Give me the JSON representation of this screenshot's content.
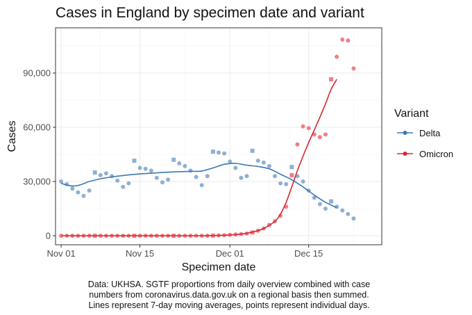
{
  "chart_data": {
    "type": "line",
    "title": "Cases in England by specimen date and variant",
    "xlabel": "Specimen date",
    "ylabel": "Cases",
    "xlim": [
      "2021-10-31",
      "2021-12-28"
    ],
    "ylim": [
      -5000,
      115000
    ],
    "x_ticks": [
      {
        "date": "2021-11-01",
        "label": "Nov 01"
      },
      {
        "date": "2021-11-15",
        "label": "Nov 15"
      },
      {
        "date": "2021-12-01",
        "label": "Dec 01"
      },
      {
        "date": "2021-12-15",
        "label": "Dec 15"
      }
    ],
    "y_ticks": [
      {
        "value": 0,
        "label": "0"
      },
      {
        "value": 30000,
        "label": "30,000"
      },
      {
        "value": 60000,
        "label": "60,000"
      },
      {
        "value": 90000,
        "label": "90,000"
      }
    ],
    "grid": true,
    "legend": {
      "title": "Variant",
      "position": "right"
    },
    "series": [
      {
        "name": "Delta",
        "color": "#3a78b5",
        "point_color": "#8fb0d3",
        "points": [
          {
            "x": "2021-11-01",
            "y": 30000,
            "shape": "circle"
          },
          {
            "x": "2021-11-02",
            "y": 28500,
            "shape": "circle"
          },
          {
            "x": "2021-11-03",
            "y": 26000,
            "shape": "circle"
          },
          {
            "x": "2021-11-04",
            "y": 24000,
            "shape": "circle"
          },
          {
            "x": "2021-11-05",
            "y": 22000,
            "shape": "circle"
          },
          {
            "x": "2021-11-06",
            "y": 25000,
            "shape": "circle"
          },
          {
            "x": "2021-11-07",
            "y": 35000,
            "shape": "square"
          },
          {
            "x": "2021-11-08",
            "y": 33500,
            "shape": "circle"
          },
          {
            "x": "2021-11-09",
            "y": 34500,
            "shape": "circle"
          },
          {
            "x": "2021-11-10",
            "y": 33000,
            "shape": "circle"
          },
          {
            "x": "2021-11-11",
            "y": 30500,
            "shape": "circle"
          },
          {
            "x": "2021-11-12",
            "y": 27000,
            "shape": "circle"
          },
          {
            "x": "2021-11-13",
            "y": 29000,
            "shape": "circle"
          },
          {
            "x": "2021-11-14",
            "y": 41500,
            "shape": "square"
          },
          {
            "x": "2021-11-15",
            "y": 37500,
            "shape": "circle"
          },
          {
            "x": "2021-11-16",
            "y": 37000,
            "shape": "circle"
          },
          {
            "x": "2021-11-17",
            "y": 36000,
            "shape": "circle"
          },
          {
            "x": "2021-11-18",
            "y": 32000,
            "shape": "circle"
          },
          {
            "x": "2021-11-19",
            "y": 29500,
            "shape": "circle"
          },
          {
            "x": "2021-11-20",
            "y": 31000,
            "shape": "circle"
          },
          {
            "x": "2021-11-21",
            "y": 42000,
            "shape": "square"
          },
          {
            "x": "2021-11-22",
            "y": 40000,
            "shape": "circle"
          },
          {
            "x": "2021-11-23",
            "y": 38500,
            "shape": "circle"
          },
          {
            "x": "2021-11-24",
            "y": 36000,
            "shape": "circle"
          },
          {
            "x": "2021-11-25",
            "y": 32500,
            "shape": "circle"
          },
          {
            "x": "2021-11-26",
            "y": 28000,
            "shape": "circle"
          },
          {
            "x": "2021-11-27",
            "y": 33000,
            "shape": "circle"
          },
          {
            "x": "2021-11-28",
            "y": 46500,
            "shape": "square"
          },
          {
            "x": "2021-11-29",
            "y": 46000,
            "shape": "circle"
          },
          {
            "x": "2021-11-30",
            "y": 45500,
            "shape": "circle"
          },
          {
            "x": "2021-12-01",
            "y": 41000,
            "shape": "circle"
          },
          {
            "x": "2021-12-02",
            "y": 37500,
            "shape": "circle"
          },
          {
            "x": "2021-12-03",
            "y": 32000,
            "shape": "circle"
          },
          {
            "x": "2021-12-04",
            "y": 33000,
            "shape": "circle"
          },
          {
            "x": "2021-12-05",
            "y": 47000,
            "shape": "square"
          },
          {
            "x": "2021-12-06",
            "y": 41500,
            "shape": "circle"
          },
          {
            "x": "2021-12-07",
            "y": 40500,
            "shape": "circle"
          },
          {
            "x": "2021-12-08",
            "y": 38500,
            "shape": "circle"
          },
          {
            "x": "2021-12-09",
            "y": 33000,
            "shape": "circle"
          },
          {
            "x": "2021-12-10",
            "y": 29000,
            "shape": "circle"
          },
          {
            "x": "2021-12-11",
            "y": 28500,
            "shape": "circle"
          },
          {
            "x": "2021-12-12",
            "y": 38000,
            "shape": "square"
          },
          {
            "x": "2021-12-13",
            "y": 33000,
            "shape": "circle"
          },
          {
            "x": "2021-12-14",
            "y": 30000,
            "shape": "circle"
          },
          {
            "x": "2021-12-15",
            "y": 25000,
            "shape": "circle"
          },
          {
            "x": "2021-12-16",
            "y": 21000,
            "shape": "circle"
          },
          {
            "x": "2021-12-17",
            "y": 17500,
            "shape": "circle"
          },
          {
            "x": "2021-12-18",
            "y": 15000,
            "shape": "circle"
          },
          {
            "x": "2021-12-19",
            "y": 19000,
            "shape": "square"
          },
          {
            "x": "2021-12-20",
            "y": 16000,
            "shape": "circle"
          },
          {
            "x": "2021-12-21",
            "y": 14000,
            "shape": "circle"
          },
          {
            "x": "2021-12-22",
            "y": 12000,
            "shape": "circle"
          },
          {
            "x": "2021-12-23",
            "y": 9500,
            "shape": "circle"
          }
        ],
        "moving_average": [
          {
            "x": "2021-11-01",
            "y": 29000
          },
          {
            "x": "2021-11-02",
            "y": 28000
          },
          {
            "x": "2021-11-03",
            "y": 27500
          },
          {
            "x": "2021-11-04",
            "y": 27800
          },
          {
            "x": "2021-11-05",
            "y": 28800
          },
          {
            "x": "2021-11-06",
            "y": 30000
          },
          {
            "x": "2021-11-08",
            "y": 31500
          },
          {
            "x": "2021-11-10",
            "y": 32500
          },
          {
            "x": "2021-11-12",
            "y": 33300
          },
          {
            "x": "2021-11-15",
            "y": 34200
          },
          {
            "x": "2021-11-18",
            "y": 34800
          },
          {
            "x": "2021-11-21",
            "y": 35300
          },
          {
            "x": "2021-11-24",
            "y": 35600
          },
          {
            "x": "2021-11-26",
            "y": 35800
          },
          {
            "x": "2021-11-28",
            "y": 37500
          },
          {
            "x": "2021-11-30",
            "y": 39500
          },
          {
            "x": "2021-12-02",
            "y": 40000
          },
          {
            "x": "2021-12-04",
            "y": 39000
          },
          {
            "x": "2021-12-06",
            "y": 38300
          },
          {
            "x": "2021-12-08",
            "y": 37000
          },
          {
            "x": "2021-12-10",
            "y": 34000
          },
          {
            "x": "2021-12-12",
            "y": 31000
          },
          {
            "x": "2021-12-14",
            "y": 27000
          },
          {
            "x": "2021-12-16",
            "y": 22500
          },
          {
            "x": "2021-12-18",
            "y": 18500
          },
          {
            "x": "2021-12-20",
            "y": 15500
          }
        ]
      },
      {
        "name": "Omicron",
        "color": "#d9262e",
        "point_color": "#ef7f86",
        "points": [
          {
            "x": "2021-11-01",
            "y": 0,
            "shape": "circle"
          },
          {
            "x": "2021-11-02",
            "y": 0,
            "shape": "circle"
          },
          {
            "x": "2021-11-03",
            "y": 0,
            "shape": "circle"
          },
          {
            "x": "2021-11-04",
            "y": 0,
            "shape": "circle"
          },
          {
            "x": "2021-11-05",
            "y": 0,
            "shape": "circle"
          },
          {
            "x": "2021-11-06",
            "y": 0,
            "shape": "circle"
          },
          {
            "x": "2021-11-07",
            "y": 0,
            "shape": "square"
          },
          {
            "x": "2021-11-08",
            "y": 0,
            "shape": "circle"
          },
          {
            "x": "2021-11-09",
            "y": 0,
            "shape": "circle"
          },
          {
            "x": "2021-11-10",
            "y": 0,
            "shape": "circle"
          },
          {
            "x": "2021-11-11",
            "y": 0,
            "shape": "circle"
          },
          {
            "x": "2021-11-12",
            "y": 0,
            "shape": "circle"
          },
          {
            "x": "2021-11-13",
            "y": 0,
            "shape": "circle"
          },
          {
            "x": "2021-11-14",
            "y": 0,
            "shape": "square"
          },
          {
            "x": "2021-11-15",
            "y": 0,
            "shape": "circle"
          },
          {
            "x": "2021-11-16",
            "y": 0,
            "shape": "circle"
          },
          {
            "x": "2021-11-17",
            "y": 0,
            "shape": "circle"
          },
          {
            "x": "2021-11-18",
            "y": 0,
            "shape": "circle"
          },
          {
            "x": "2021-11-19",
            "y": 0,
            "shape": "circle"
          },
          {
            "x": "2021-11-20",
            "y": 0,
            "shape": "circle"
          },
          {
            "x": "2021-11-21",
            "y": 0,
            "shape": "square"
          },
          {
            "x": "2021-11-22",
            "y": 0,
            "shape": "circle"
          },
          {
            "x": "2021-11-23",
            "y": 0,
            "shape": "circle"
          },
          {
            "x": "2021-11-24",
            "y": 0,
            "shape": "circle"
          },
          {
            "x": "2021-11-25",
            "y": 0,
            "shape": "circle"
          },
          {
            "x": "2021-11-26",
            "y": 0,
            "shape": "circle"
          },
          {
            "x": "2021-11-27",
            "y": 0,
            "shape": "circle"
          },
          {
            "x": "2021-11-28",
            "y": 100,
            "shape": "square"
          },
          {
            "x": "2021-11-29",
            "y": 200,
            "shape": "circle"
          },
          {
            "x": "2021-11-30",
            "y": 300,
            "shape": "circle"
          },
          {
            "x": "2021-12-01",
            "y": 500,
            "shape": "circle"
          },
          {
            "x": "2021-12-02",
            "y": 700,
            "shape": "circle"
          },
          {
            "x": "2021-12-03",
            "y": 900,
            "shape": "circle"
          },
          {
            "x": "2021-12-04",
            "y": 1200,
            "shape": "circle"
          },
          {
            "x": "2021-12-05",
            "y": 1800,
            "shape": "square"
          },
          {
            "x": "2021-12-06",
            "y": 2800,
            "shape": "circle"
          },
          {
            "x": "2021-12-07",
            "y": 4000,
            "shape": "circle"
          },
          {
            "x": "2021-12-08",
            "y": 6000,
            "shape": "circle"
          },
          {
            "x": "2021-12-09",
            "y": 8000,
            "shape": "circle"
          },
          {
            "x": "2021-12-10",
            "y": 11000,
            "shape": "circle"
          },
          {
            "x": "2021-12-11",
            "y": 16000,
            "shape": "circle"
          },
          {
            "x": "2021-12-12",
            "y": 33500,
            "shape": "square"
          },
          {
            "x": "2021-12-13",
            "y": 50500,
            "shape": "circle"
          },
          {
            "x": "2021-12-14",
            "y": 60500,
            "shape": "circle"
          },
          {
            "x": "2021-12-15",
            "y": 59500,
            "shape": "circle"
          },
          {
            "x": "2021-12-16",
            "y": 56000,
            "shape": "circle"
          },
          {
            "x": "2021-12-17",
            "y": 54500,
            "shape": "circle"
          },
          {
            "x": "2021-12-18",
            "y": 56000,
            "shape": "circle"
          },
          {
            "x": "2021-12-19",
            "y": 86500,
            "shape": "square"
          },
          {
            "x": "2021-12-20",
            "y": 99000,
            "shape": "circle"
          },
          {
            "x": "2021-12-21",
            "y": 108500,
            "shape": "circle"
          },
          {
            "x": "2021-12-22",
            "y": 108000,
            "shape": "circle"
          },
          {
            "x": "2021-12-23",
            "y": 92500,
            "shape": "circle"
          }
        ],
        "moving_average": [
          {
            "x": "2021-11-01",
            "y": 0
          },
          {
            "x": "2021-11-15",
            "y": 0
          },
          {
            "x": "2021-11-26",
            "y": 0
          },
          {
            "x": "2021-11-29",
            "y": 150
          },
          {
            "x": "2021-12-01",
            "y": 400
          },
          {
            "x": "2021-12-03",
            "y": 900
          },
          {
            "x": "2021-12-05",
            "y": 2000
          },
          {
            "x": "2021-12-07",
            "y": 4000
          },
          {
            "x": "2021-12-09",
            "y": 8000
          },
          {
            "x": "2021-12-10",
            "y": 12000
          },
          {
            "x": "2021-12-11",
            "y": 18500
          },
          {
            "x": "2021-12-12",
            "y": 27000
          },
          {
            "x": "2021-12-13",
            "y": 36000
          },
          {
            "x": "2021-12-14",
            "y": 44000
          },
          {
            "x": "2021-12-15",
            "y": 51500
          },
          {
            "x": "2021-12-16",
            "y": 58500
          },
          {
            "x": "2021-12-17",
            "y": 65500
          },
          {
            "x": "2021-12-18",
            "y": 73000
          },
          {
            "x": "2021-12-19",
            "y": 81000
          },
          {
            "x": "2021-12-20",
            "y": 86500
          }
        ]
      }
    ],
    "caption": [
      "Data: UKHSA. SGTF proportions from daily overview combined with case",
      "numbers from coronavirus.data.gov.uk on a regional basis then summed.",
      "Lines represent 7-day moving averages, points represent individual days."
    ]
  }
}
